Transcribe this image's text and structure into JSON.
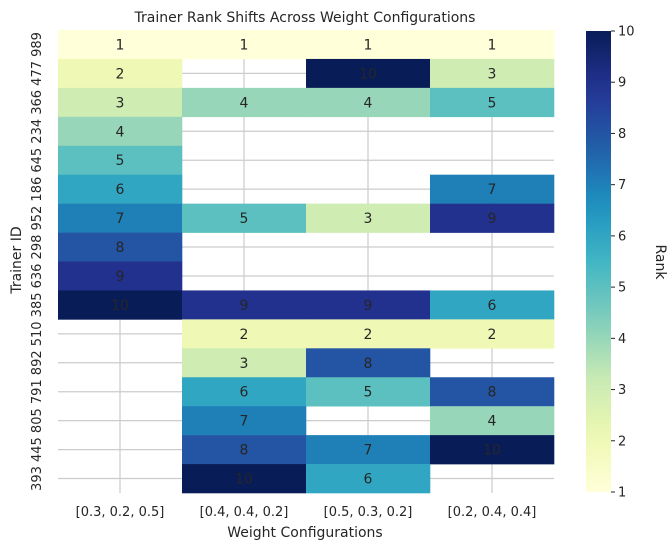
{
  "chart_data": {
    "type": "heatmap",
    "title": "Trainer Rank Shifts Across Weight Configurations",
    "xlabel": "Weight Configurations",
    "ylabel": "Trainer ID",
    "colorbar_label": "Rank",
    "x": [
      "[0.3, 0.2, 0.5]",
      "[0.4, 0.4, 0.2]",
      "[0.5, 0.3, 0.2]",
      "[0.2, 0.4, 0.4]"
    ],
    "y": [
      "989",
      "477",
      "366",
      "234",
      "645",
      "186",
      "952",
      "298",
      "636",
      "385",
      "510",
      "892",
      "791",
      "805",
      "445",
      "393"
    ],
    "values": [
      [
        1,
        1,
        1,
        1
      ],
      [
        2,
        null,
        10,
        3
      ],
      [
        3,
        4,
        4,
        5
      ],
      [
        4,
        null,
        null,
        null
      ],
      [
        5,
        null,
        null,
        null
      ],
      [
        6,
        null,
        null,
        7
      ],
      [
        7,
        5,
        3,
        9
      ],
      [
        8,
        null,
        null,
        null
      ],
      [
        9,
        null,
        null,
        null
      ],
      [
        10,
        9,
        9,
        6
      ],
      [
        null,
        2,
        2,
        2
      ],
      [
        null,
        3,
        8,
        null
      ],
      [
        null,
        6,
        5,
        8
      ],
      [
        null,
        7,
        null,
        4
      ],
      [
        null,
        8,
        7,
        10
      ],
      [
        null,
        10,
        6,
        null
      ]
    ],
    "colorbar_range": [
      1,
      10
    ],
    "colorbar_ticks": [
      "1",
      "2",
      "3",
      "4",
      "5",
      "6",
      "7",
      "8",
      "9",
      "10"
    ],
    "colormap": "YlGnBu",
    "grid": true
  }
}
